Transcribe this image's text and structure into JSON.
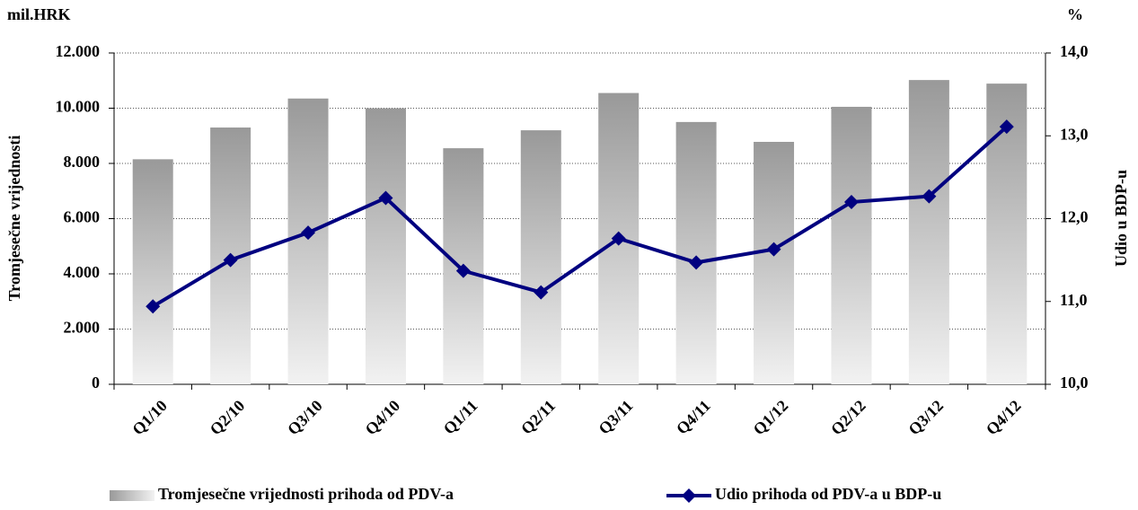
{
  "chart_data": {
    "type": "bar-line",
    "y_unit": "mil.HRK",
    "y2_unit": "%",
    "ylabel": "Tromjesečne vrijednosti",
    "y2label": "Udio u BDP-u",
    "categories": [
      "Q1/10",
      "Q2/10",
      "Q3/10",
      "Q4/10",
      "Q1/11",
      "Q2/11",
      "Q3/11",
      "Q4/11",
      "Q1/12",
      "Q2/12",
      "Q3/12",
      "Q4/12"
    ],
    "series": [
      {
        "name": "Tromjesečne vrijednosti prihoda od PDV-a",
        "type": "bar",
        "color": "#a0a0a0",
        "values": [
          8150,
          9300,
          10350,
          10000,
          8550,
          9200,
          10550,
          9500,
          8780,
          10050,
          11020,
          10890
        ]
      },
      {
        "name": "Udio prihoda od PDV-a u BDP-u",
        "type": "line",
        "axis": "y2",
        "color": "#000080",
        "values": [
          10.94,
          11.5,
          11.83,
          12.25,
          11.37,
          11.11,
          11.76,
          11.47,
          11.63,
          12.2,
          12.27,
          13.11
        ]
      }
    ],
    "ylim": [
      0,
      12000
    ],
    "yticks": [
      0,
      {
        "value": 2000,
        "label": "2.000"
      },
      {
        "value": 4000,
        "label": "4.000"
      },
      {
        "value": 6000,
        "label": "6.000"
      },
      {
        "value": 8000,
        "label": "8.000"
      },
      {
        "value": 10000,
        "label": "10.000"
      },
      {
        "value": 12000,
        "label": "12.000"
      }
    ],
    "y2lim": [
      10,
      14
    ],
    "y2ticks": [
      {
        "value": 10,
        "label": "10,0"
      },
      {
        "value": 11,
        "label": "11,0"
      },
      {
        "value": 12,
        "label": "12,0"
      },
      {
        "value": 13,
        "label": "13,0"
      },
      {
        "value": 14,
        "label": "14,0"
      }
    ],
    "grid": true,
    "legend": "bottom"
  }
}
